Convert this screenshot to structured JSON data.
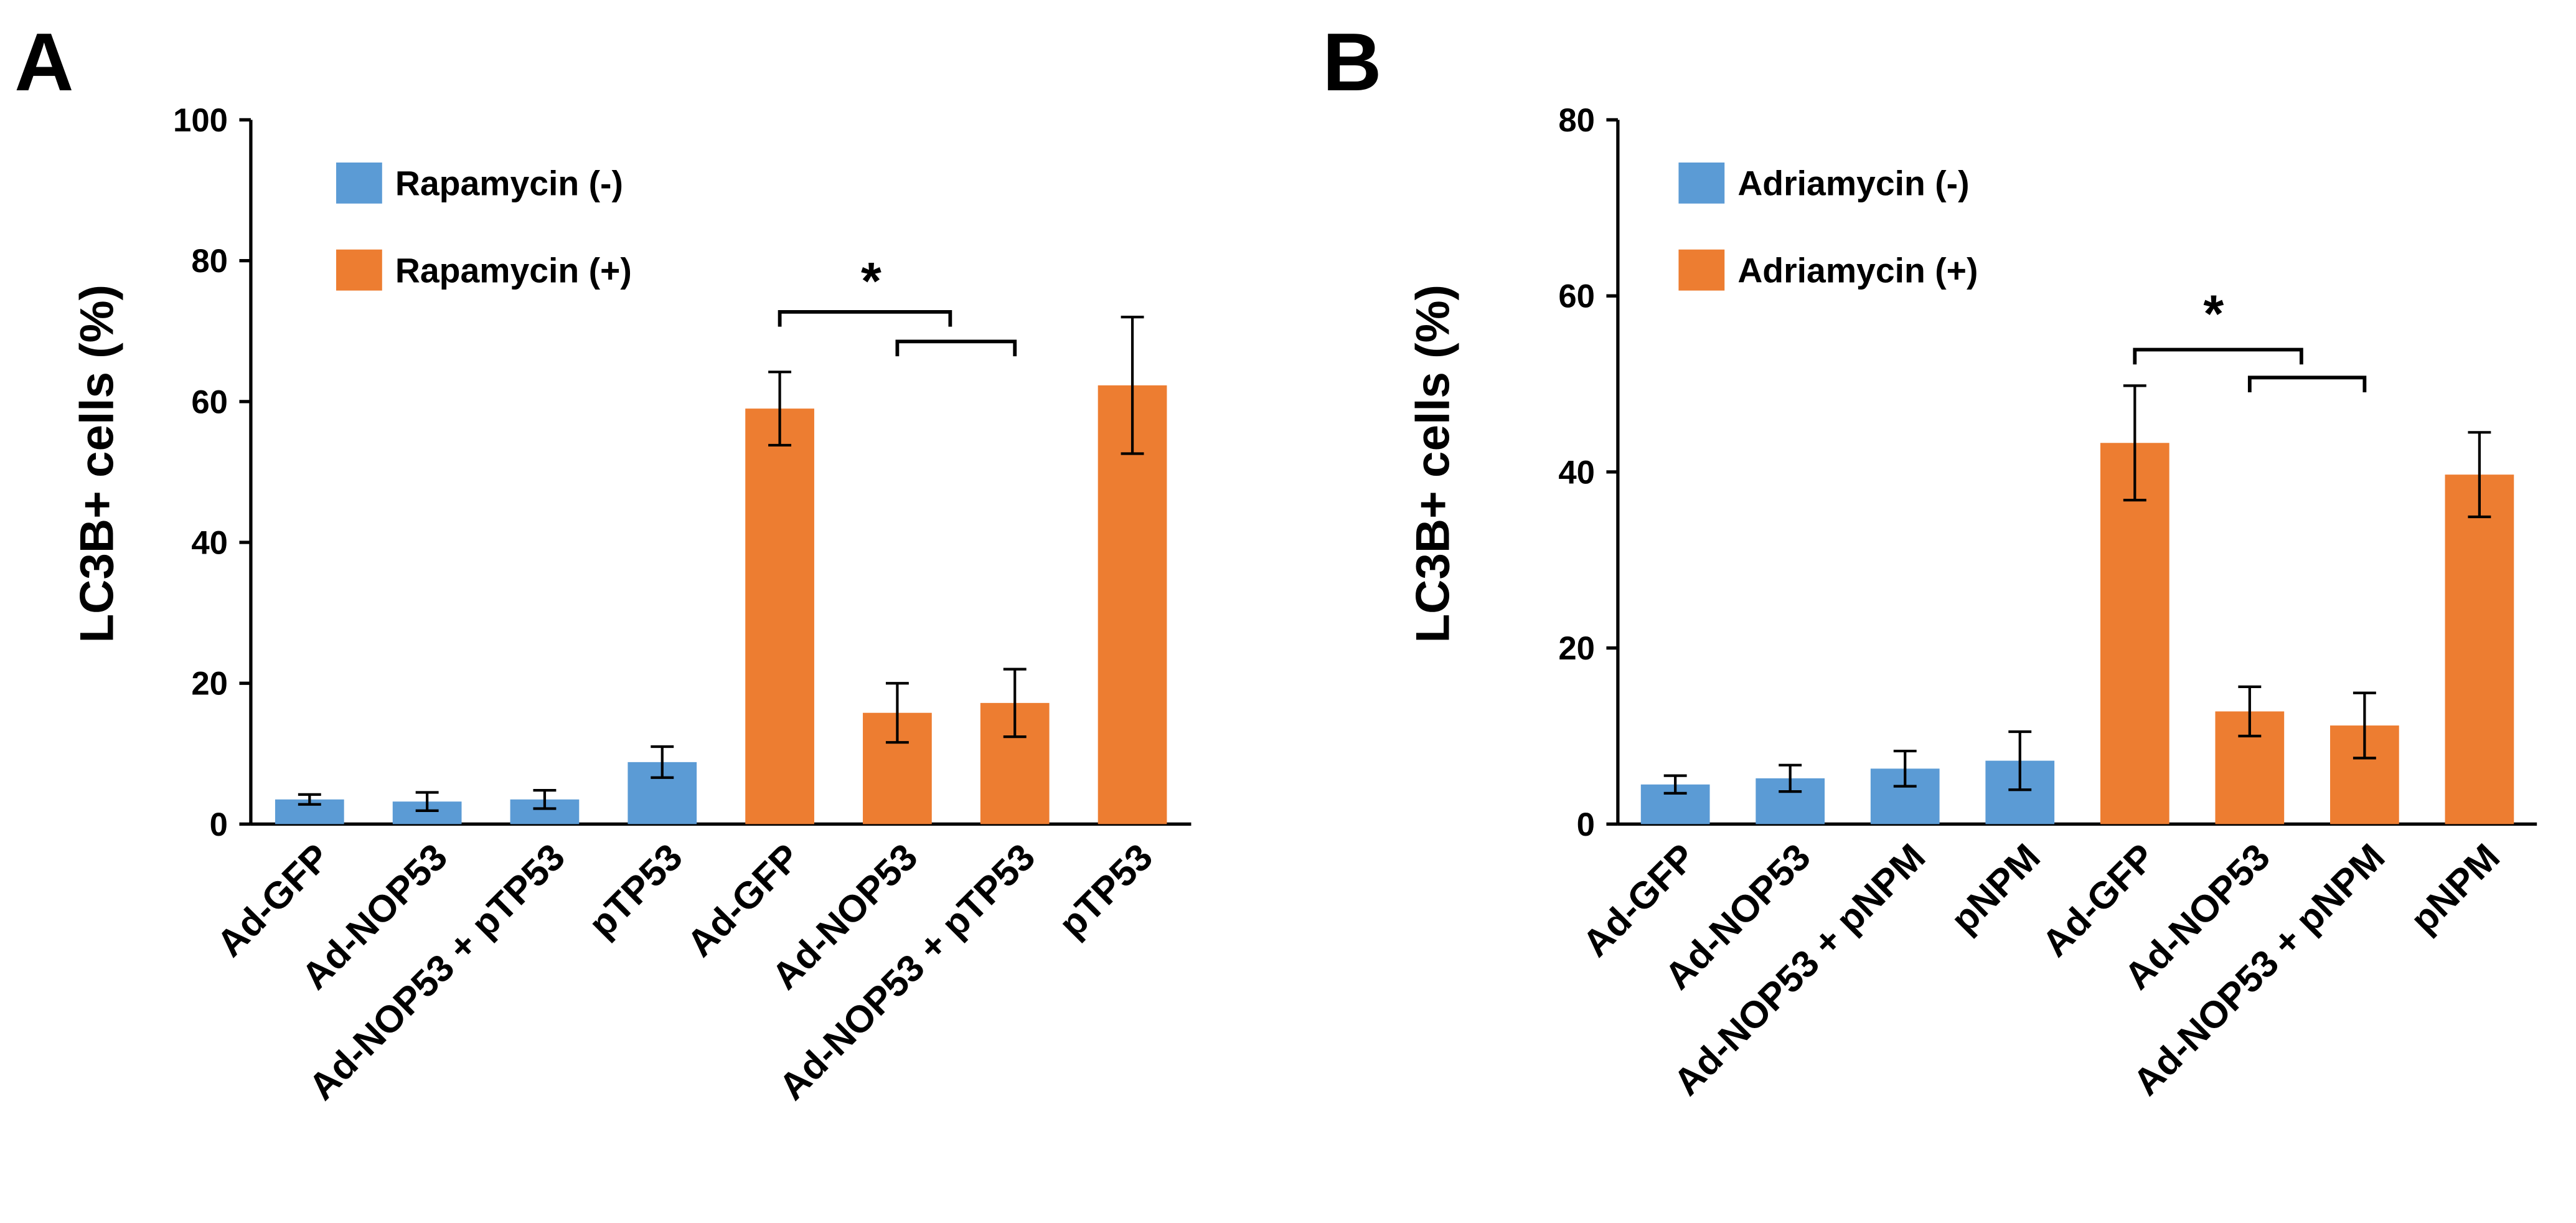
{
  "chart_data": [
    {
      "type": "bar",
      "panel": "A",
      "ylabel": "LC3B+ cells (%)",
      "annotation": "*",
      "categories": [
        "Ad-GFP",
        "Ad-NOP53",
        "Ad-NOP53 + pTP53",
        "pTP53",
        "Ad-GFP",
        "Ad-NOP53",
        "Ad-NOP53 + pTP53",
        "pTP53"
      ],
      "series": [
        {
          "name": "Rapamycin (-)",
          "color": "#5b9bd5",
          "values": [
            3.5,
            3.2,
            3.5,
            8.8,
            null,
            null,
            null,
            null
          ],
          "errors": [
            0.7,
            1.3,
            1.3,
            2.2,
            null,
            null,
            null,
            null
          ]
        },
        {
          "name": "Rapamycin (+)",
          "color": "#ed7d31",
          "values": [
            null,
            null,
            null,
            null,
            59,
            15.8,
            17.2,
            62.3
          ],
          "errors": [
            null,
            null,
            null,
            null,
            5.2,
            4.2,
            4.8,
            9.7
          ]
        }
      ],
      "ylim": [
        0,
        100
      ],
      "yticks": [
        0,
        20,
        40,
        60,
        80,
        100
      ],
      "legend": "upper left"
    },
    {
      "type": "bar",
      "panel": "B",
      "ylabel": "LC3B+ cells (%)",
      "annotation": "*",
      "categories": [
        "Ad-GFP",
        "Ad-NOP53",
        "Ad-NOP53 + pNPM",
        "pNPM",
        "Ad-GFP",
        "Ad-NOP53",
        "Ad-NOP53 + pNPM",
        "pNPM"
      ],
      "series": [
        {
          "name": "Adriamycin (-)",
          "color": "#5b9bd5",
          "values": [
            4.5,
            5.2,
            6.3,
            7.2,
            null,
            null,
            null,
            null
          ],
          "errors": [
            1.0,
            1.5,
            2.0,
            3.3,
            null,
            null,
            null,
            null
          ]
        },
        {
          "name": "Adriamycin (+)",
          "color": "#ed7d31",
          "values": [
            null,
            null,
            null,
            null,
            43.3,
            12.8,
            11.2,
            39.7
          ],
          "errors": [
            null,
            null,
            null,
            null,
            6.5,
            2.8,
            3.7,
            4.8
          ]
        }
      ],
      "ylim": [
        0,
        80
      ],
      "yticks": [
        0,
        20,
        40,
        60,
        80
      ],
      "legend": "upper left"
    }
  ]
}
